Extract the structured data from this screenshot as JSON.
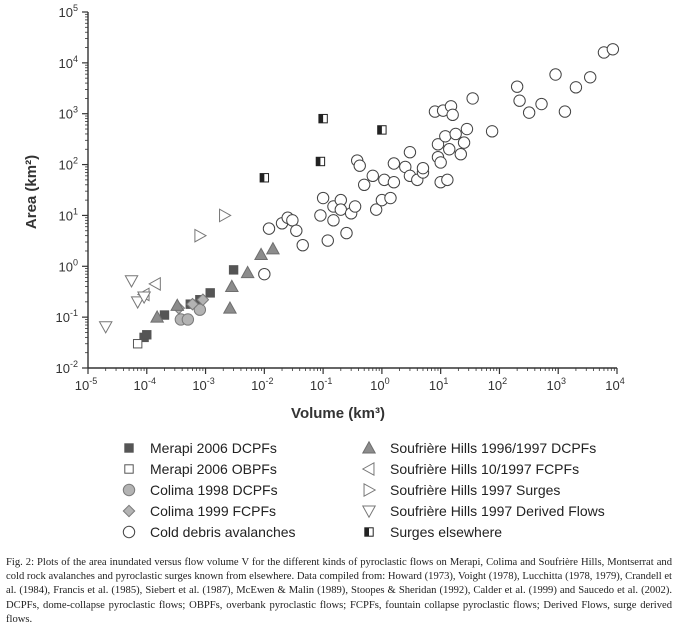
{
  "chart_data": {
    "type": "scatter",
    "xlabel": "Volume (km³)",
    "ylabel": "Area (km²)",
    "x_scale": "log",
    "y_scale": "log",
    "xlim": [
      1e-05,
      10000.0
    ],
    "ylim": [
      0.01,
      100000.0
    ],
    "x_ticks": [
      {
        "v": 1e-05,
        "b": "10",
        "e": "-5"
      },
      {
        "v": 0.0001,
        "b": "10",
        "e": "-4"
      },
      {
        "v": 0.001,
        "b": "10",
        "e": "-3"
      },
      {
        "v": 0.01,
        "b": "10",
        "e": "-2"
      },
      {
        "v": 0.1,
        "b": "10",
        "e": "-1"
      },
      {
        "v": 1,
        "b": "10",
        "e": "0"
      },
      {
        "v": 10,
        "b": "10",
        "e": "1"
      },
      {
        "v": 100,
        "b": "10",
        "e": "2"
      },
      {
        "v": 1000,
        "b": "10",
        "e": "3"
      },
      {
        "v": 10000,
        "b": "10",
        "e": "4"
      }
    ],
    "y_ticks": [
      {
        "v": 0.01,
        "b": "10",
        "e": "-2"
      },
      {
        "v": 0.1,
        "b": "10",
        "e": "-1"
      },
      {
        "v": 1,
        "b": "10",
        "e": "0"
      },
      {
        "v": 10,
        "b": "10",
        "e": "1"
      },
      {
        "v": 100,
        "b": "10",
        "e": "2"
      },
      {
        "v": 1000,
        "b": "10",
        "e": "3"
      },
      {
        "v": 10000,
        "b": "10",
        "e": "4"
      },
      {
        "v": 100000,
        "b": "10",
        "e": "5"
      }
    ],
    "series": [
      {
        "name": "Merapi 2006 DCPFs",
        "marker": "square-filled",
        "color": "#555555",
        "points": [
          [
            9e-05,
            0.04
          ],
          [
            0.0002,
            0.11
          ],
          [
            0.00055,
            0.18
          ],
          [
            0.0008,
            0.22
          ],
          [
            0.0012,
            0.3
          ],
          [
            0.003,
            0.85
          ],
          [
            0.0001,
            0.045
          ]
        ]
      },
      {
        "name": "Merapi 2006 OBPFs",
        "marker": "square-open",
        "color": "#555555",
        "points": [
          [
            7e-05,
            0.03
          ]
        ]
      },
      {
        "name": "Colima 1998 DCPFs",
        "marker": "circle-filled",
        "color": "#b3b3b3",
        "points": [
          [
            0.00038,
            0.09
          ],
          [
            0.0005,
            0.09
          ],
          [
            0.0008,
            0.14
          ]
        ]
      },
      {
        "name": "Colima 1999 FCPFs",
        "marker": "diamond-filled",
        "color": "#b3b3b3",
        "points": [
          [
            0.00035,
            0.15
          ],
          [
            0.0006,
            0.18
          ],
          [
            0.0009,
            0.22
          ]
        ]
      },
      {
        "name": "Cold debris avalanches",
        "marker": "circle-open",
        "color": "#444444",
        "points": [
          [
            0.01,
            0.7
          ],
          [
            0.012,
            5.5
          ],
          [
            0.02,
            7
          ],
          [
            0.025,
            9
          ],
          [
            0.03,
            8
          ],
          [
            0.035,
            5
          ],
          [
            0.045,
            2.6
          ],
          [
            0.09,
            10
          ],
          [
            0.1,
            22
          ],
          [
            0.12,
            3.2
          ],
          [
            0.15,
            15
          ],
          [
            0.15,
            8
          ],
          [
            0.2,
            20
          ],
          [
            0.2,
            13
          ],
          [
            0.25,
            4.5
          ],
          [
            0.3,
            11
          ],
          [
            0.35,
            15
          ],
          [
            0.38,
            120
          ],
          [
            0.42,
            95
          ],
          [
            0.5,
            40
          ],
          [
            0.7,
            60
          ],
          [
            0.8,
            13
          ],
          [
            1.0,
            20
          ],
          [
            1.1,
            50
          ],
          [
            1.4,
            22
          ],
          [
            1.6,
            45
          ],
          [
            1.6,
            105
          ],
          [
            2.5,
            90
          ],
          [
            3,
            175
          ],
          [
            3,
            60
          ],
          [
            4,
            50
          ],
          [
            5,
            70
          ],
          [
            5,
            85
          ],
          [
            8,
            1100
          ],
          [
            9,
            140
          ],
          [
            9,
            250
          ],
          [
            10,
            45
          ],
          [
            10,
            110
          ],
          [
            11,
            1150
          ],
          [
            12,
            360
          ],
          [
            13,
            50
          ],
          [
            14,
            200
          ],
          [
            15,
            1400
          ],
          [
            16,
            950
          ],
          [
            18,
            400
          ],
          [
            22,
            160
          ],
          [
            25,
            270
          ],
          [
            28,
            500
          ],
          [
            35,
            2000
          ],
          [
            75,
            450
          ],
          [
            200,
            3400
          ],
          [
            220,
            1800
          ],
          [
            320,
            1050
          ],
          [
            520,
            1550
          ],
          [
            900,
            5900
          ],
          [
            1300,
            1100
          ],
          [
            2000,
            3300
          ],
          [
            3500,
            5200
          ],
          [
            6000,
            16000
          ],
          [
            8500,
            18500
          ]
        ]
      },
      {
        "name": "Surges elsewhere",
        "marker": "square-half",
        "color": "#222222",
        "points": [
          [
            0.1,
            800
          ],
          [
            1.0,
            480
          ],
          [
            0.09,
            115
          ],
          [
            0.01,
            55
          ]
        ]
      },
      {
        "name": "Soufrière Hills 1996/1997 DCPFs",
        "marker": "triangle-up-filled",
        "color": "#8c8c8c",
        "points": [
          [
            0.00015,
            0.1
          ],
          [
            0.00033,
            0.17
          ],
          [
            0.0026,
            0.15
          ],
          [
            0.0028,
            0.4
          ],
          [
            0.0052,
            0.75
          ],
          [
            0.0088,
            1.7
          ],
          [
            0.014,
            2.2
          ]
        ]
      },
      {
        "name": "Soufrière Hills 10/1997 FCPFs",
        "marker": "triangle-left-open",
        "color": "#777777",
        "points": [
          [
            0.00014,
            0.45
          ],
          [
            9e-05,
            0.28
          ]
        ]
      },
      {
        "name": "Soufrière Hills 1997 Surges",
        "marker": "triangle-right-open",
        "color": "#777777",
        "points": [
          [
            0.0021,
            10
          ],
          [
            0.0008,
            4
          ]
        ]
      },
      {
        "name": "Soufrière Hills 1997 Derived Flows",
        "marker": "triangle-down-open",
        "color": "#777777",
        "points": [
          [
            2e-05,
            0.065
          ],
          [
            5.5e-05,
            0.52
          ],
          [
            7e-05,
            0.2
          ],
          [
            9e-05,
            0.25
          ]
        ]
      }
    ]
  },
  "legend": [
    {
      "label": "Merapi 2006 DCPFs",
      "marker": "square-filled",
      "color": "#555555"
    },
    {
      "label": "Merapi 2006 OBPFs",
      "marker": "square-open",
      "color": "#555555"
    },
    {
      "label": "Colima 1998 DCPFs",
      "marker": "circle-filled",
      "color": "#b3b3b3"
    },
    {
      "label": "Colima 1999 FCPFs",
      "marker": "diamond-filled",
      "color": "#b3b3b3"
    },
    {
      "label": "Cold debris avalanches",
      "marker": "circle-open",
      "color": "#444444"
    },
    {
      "label": "Soufrière Hills 1996/1997 DCPFs",
      "marker": "triangle-up-filled",
      "color": "#8c8c8c"
    },
    {
      "label": "Soufrière Hills 10/1997 FCPFs",
      "marker": "triangle-left-open",
      "color": "#777777"
    },
    {
      "label": "Soufrière Hills 1997 Surges",
      "marker": "triangle-right-open",
      "color": "#777777"
    },
    {
      "label": "Soufrière Hills 1997 Derived Flows",
      "marker": "triangle-down-open",
      "color": "#777777"
    },
    {
      "label": "Surges elsewhere",
      "marker": "square-half",
      "color": "#222222"
    }
  ],
  "caption": "Fig. 2: Plots of the area inundated versus flow volume V for the different kinds of pyroclastic flows on Merapi, Colima and Soufrière Hills, Montserrat and cold rock avalanches and pyroclastic surges known from elsewhere. Data compiled from: Howard (1973), Voight (1978), Lucchitta (1978, 1979), Crandell et al. (1984), Francis et al. (1985), Siebert et al. (1987), McEwen & Malin (1989), Stoopes & Sheridan (1992), Calder et al. (1999) and Saucedo et al. (2002). DCPFs, dome-collapse pyroclastic flows; OBPFs, overbank pyroclastic flows; FCPFs, fountain collapse pyroclastic flows; Derived Flows, surge derived flows."
}
